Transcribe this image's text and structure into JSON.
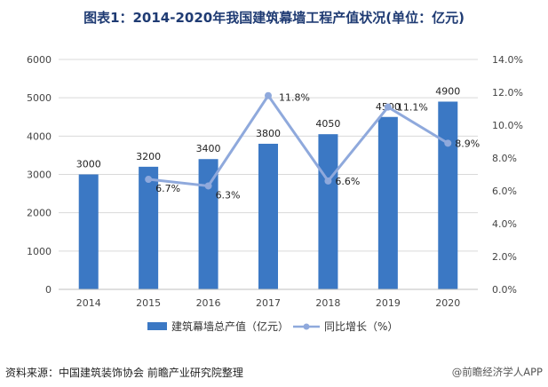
{
  "title": "图表1：2014-2020年我国建筑幕墙工程产值状况(单位：亿元)",
  "source": "资料来源：中国建筑装饰协会 前瞻产业研究院整理",
  "brand": "@前瞻经济学人APP",
  "colors": {
    "bar": "#3b78c4",
    "line": "#8fa9dc",
    "title": "#1f3b73",
    "grid": "#d9d9d9"
  },
  "chart_data": {
    "type": "bar",
    "categories": [
      "2014",
      "2015",
      "2016",
      "2017",
      "2018",
      "2019",
      "2020"
    ],
    "series": [
      {
        "name": "建筑幕墙总产值（亿元）",
        "type": "bar",
        "axis": "left",
        "values": [
          3000,
          3200,
          3400,
          3800,
          4050,
          4500,
          4900
        ],
        "labels": [
          "3000",
          "3200",
          "3400",
          "3800",
          "4050",
          "4500",
          "4900"
        ]
      },
      {
        "name": "同比增长（%）",
        "type": "line",
        "axis": "right",
        "values": [
          null,
          6.7,
          6.3,
          11.8,
          6.6,
          11.1,
          8.9
        ],
        "labels": [
          "",
          "6.7%",
          "6.3%",
          "11.8%",
          "6.6%",
          "11.1%",
          "8.9%"
        ]
      }
    ],
    "ylim": [
      0,
      6000
    ],
    "yticks": [
      "0",
      "1000",
      "2000",
      "3000",
      "4000",
      "5000",
      "6000"
    ],
    "y2lim": [
      0,
      14
    ],
    "y2ticks": [
      "0.0%",
      "2.0%",
      "4.0%",
      "6.0%",
      "8.0%",
      "10.0%",
      "12.0%",
      "14.0%"
    ],
    "grid": true,
    "legend_position": "bottom"
  }
}
